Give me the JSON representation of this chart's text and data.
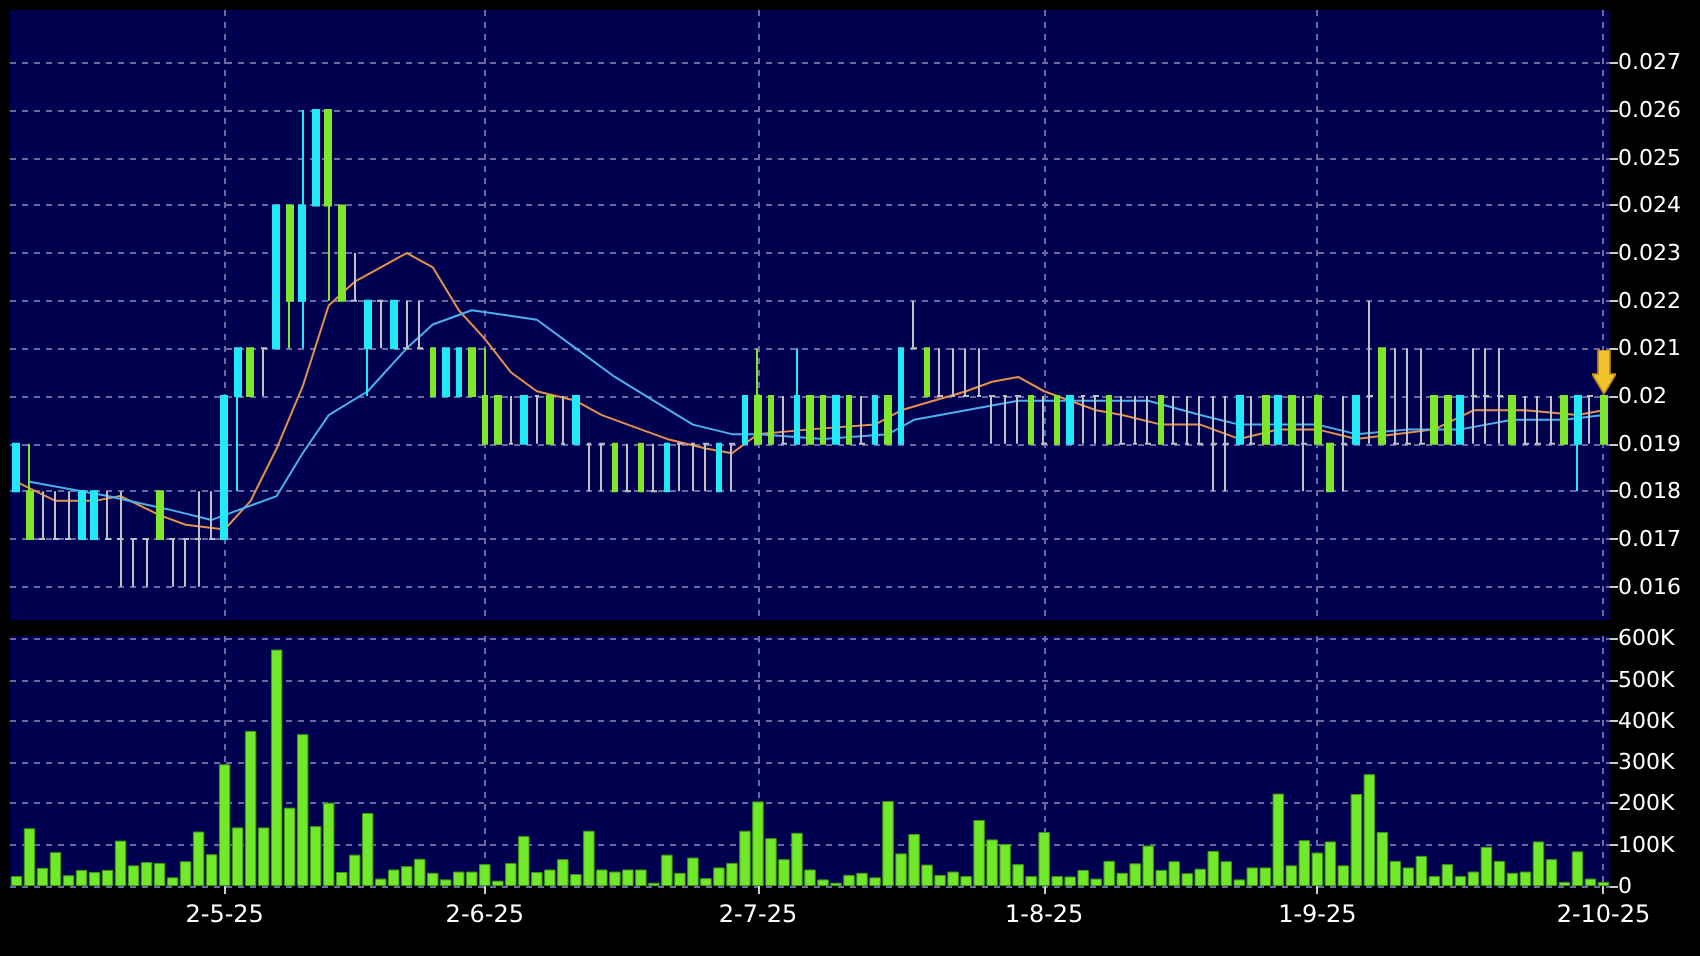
{
  "chart_data": [
    {
      "type": "candlestick",
      "categories": [
        null,
        null,
        null,
        null,
        null,
        null,
        null,
        null,
        null,
        null,
        null,
        null,
        null,
        null,
        null,
        null,
        null,
        null,
        null,
        null,
        null,
        null,
        null,
        null,
        null,
        null,
        null,
        null,
        null,
        null,
        null,
        null,
        null,
        null,
        null,
        null,
        null,
        null,
        null,
        null,
        null,
        null,
        null,
        null,
        null,
        null,
        null,
        null,
        null,
        null,
        null,
        null,
        null,
        null,
        null,
        null,
        null,
        null,
        null,
        null,
        null,
        null,
        null,
        null,
        null,
        null,
        null,
        null,
        null,
        null,
        null,
        null,
        null,
        null,
        null,
        null,
        null,
        null,
        null,
        null,
        null,
        null,
        null,
        null,
        null,
        null,
        null,
        null,
        null,
        null,
        null,
        null,
        null,
        null,
        null,
        null,
        null,
        null,
        null,
        null,
        null,
        null,
        null,
        null,
        null,
        null,
        null,
        null,
        null,
        null,
        null,
        null,
        null,
        null,
        null,
        null,
        null,
        null,
        null,
        null,
        null,
        null,
        null
      ],
      "ohlc": [
        [
          0.018,
          0.019,
          0.018,
          0.019
        ],
        [
          0.018,
          0.019,
          0.017,
          0.017
        ],
        [
          0.017,
          0.018,
          0.017,
          0.017
        ],
        [
          0.017,
          0.018,
          0.017,
          0.017
        ],
        [
          0.017,
          0.018,
          0.017,
          0.017
        ],
        [
          0.017,
          0.018,
          0.017,
          0.018
        ],
        [
          0.017,
          0.018,
          0.017,
          0.018
        ],
        [
          0.017,
          0.018,
          0.017,
          0.017
        ],
        [
          0.017,
          0.018,
          0.016,
          0.017
        ],
        [
          0.017,
          0.017,
          0.016,
          0.017
        ],
        [
          0.017,
          0.017,
          0.016,
          0.017
        ],
        [
          0.018,
          0.018,
          0.017,
          0.017
        ],
        [
          0.017,
          0.017,
          0.016,
          0.017
        ],
        [
          0.017,
          0.017,
          0.016,
          0.017
        ],
        [
          0.017,
          0.018,
          0.016,
          0.017
        ],
        [
          0.017,
          0.018,
          0.017,
          0.017
        ],
        [
          0.017,
          0.02,
          0.017,
          0.02
        ],
        [
          0.02,
          0.021,
          0.018,
          0.021
        ],
        [
          0.021,
          0.021,
          0.02,
          0.02
        ],
        [
          0.021,
          0.021,
          0.02,
          0.021
        ],
        [
          0.021,
          0.024,
          0.021,
          0.024
        ],
        [
          0.024,
          0.024,
          0.021,
          0.022
        ],
        [
          0.022,
          0.026,
          0.021,
          0.024
        ],
        [
          0.024,
          0.026,
          0.024,
          0.026
        ],
        [
          0.026,
          0.026,
          0.022,
          0.024
        ],
        [
          0.024,
          0.024,
          0.022,
          0.022
        ],
        [
          0.022,
          0.023,
          0.022,
          0.022
        ],
        [
          0.021,
          0.022,
          0.02,
          0.022
        ],
        [
          0.022,
          0.022,
          0.021,
          0.022
        ],
        [
          0.021,
          0.022,
          0.021,
          0.022
        ],
        [
          0.021,
          0.022,
          0.021,
          0.021
        ],
        [
          0.021,
          0.022,
          0.021,
          0.021
        ],
        [
          0.021,
          0.021,
          0.02,
          0.02
        ],
        [
          0.02,
          0.021,
          0.02,
          0.021
        ],
        [
          0.02,
          0.021,
          0.02,
          0.021
        ],
        [
          0.021,
          0.021,
          0.02,
          0.02
        ],
        [
          0.02,
          0.021,
          0.019,
          0.019
        ],
        [
          0.02,
          0.02,
          0.019,
          0.019
        ],
        [
          0.019,
          0.02,
          0.019,
          0.019
        ],
        [
          0.019,
          0.02,
          0.019,
          0.02
        ],
        [
          0.02,
          0.02,
          0.019,
          0.02
        ],
        [
          0.02,
          0.02,
          0.019,
          0.019
        ],
        [
          0.019,
          0.02,
          0.019,
          0.019
        ],
        [
          0.019,
          0.02,
          0.019,
          0.02
        ],
        [
          0.019,
          0.019,
          0.018,
          0.019
        ],
        [
          0.019,
          0.019,
          0.018,
          0.019
        ],
        [
          0.019,
          0.019,
          0.018,
          0.018
        ],
        [
          0.018,
          0.019,
          0.018,
          0.018
        ],
        [
          0.019,
          0.019,
          0.018,
          0.018
        ],
        [
          0.018,
          0.019,
          0.018,
          0.018
        ],
        [
          0.018,
          0.019,
          0.018,
          0.019
        ],
        [
          0.019,
          0.019,
          0.018,
          0.019
        ],
        [
          0.019,
          0.019,
          0.018,
          0.019
        ],
        [
          0.019,
          0.019,
          0.018,
          0.019
        ],
        [
          0.018,
          0.019,
          0.018,
          0.019
        ],
        [
          0.019,
          0.019,
          0.018,
          0.019
        ],
        [
          0.019,
          0.02,
          0.019,
          0.02
        ],
        [
          0.02,
          0.021,
          0.019,
          0.019
        ],
        [
          0.02,
          0.02,
          0.019,
          0.019
        ],
        [
          0.019,
          0.02,
          0.019,
          0.019
        ],
        [
          0.019,
          0.021,
          0.019,
          0.02
        ],
        [
          0.02,
          0.02,
          0.019,
          0.019
        ],
        [
          0.02,
          0.02,
          0.019,
          0.019
        ],
        [
          0.019,
          0.02,
          0.019,
          0.02
        ],
        [
          0.02,
          0.02,
          0.019,
          0.019
        ],
        [
          0.019,
          0.02,
          0.019,
          0.019
        ],
        [
          0.019,
          0.02,
          0.019,
          0.02
        ],
        [
          0.02,
          0.02,
          0.019,
          0.019
        ],
        [
          0.019,
          0.021,
          0.019,
          0.021
        ],
        [
          0.021,
          0.022,
          0.021,
          0.021
        ],
        [
          0.021,
          0.021,
          0.02,
          0.02
        ],
        [
          0.02,
          0.021,
          0.02,
          0.02
        ],
        [
          0.02,
          0.021,
          0.02,
          0.02
        ],
        [
          0.02,
          0.021,
          0.02,
          0.02
        ],
        [
          0.02,
          0.021,
          0.02,
          0.02
        ],
        [
          0.02,
          0.02,
          0.019,
          0.02
        ],
        [
          0.02,
          0.02,
          0.019,
          0.02
        ],
        [
          0.02,
          0.02,
          0.019,
          0.02
        ],
        [
          0.02,
          0.02,
          0.019,
          0.019
        ],
        [
          0.019,
          0.02,
          0.019,
          0.019
        ],
        [
          0.02,
          0.02,
          0.019,
          0.019
        ],
        [
          0.019,
          0.02,
          0.019,
          0.02
        ],
        [
          0.02,
          0.02,
          0.019,
          0.02
        ],
        [
          0.02,
          0.02,
          0.019,
          0.02
        ],
        [
          0.02,
          0.02,
          0.019,
          0.019
        ],
        [
          0.019,
          0.02,
          0.019,
          0.019
        ],
        [
          0.019,
          0.02,
          0.019,
          0.019
        ],
        [
          0.019,
          0.02,
          0.019,
          0.019
        ],
        [
          0.02,
          0.02,
          0.019,
          0.019
        ],
        [
          0.019,
          0.02,
          0.019,
          0.019
        ],
        [
          0.019,
          0.02,
          0.019,
          0.019
        ],
        [
          0.019,
          0.02,
          0.019,
          0.019
        ],
        [
          0.019,
          0.02,
          0.018,
          0.019
        ],
        [
          0.019,
          0.02,
          0.018,
          0.019
        ],
        [
          0.019,
          0.02,
          0.019,
          0.02
        ],
        [
          0.019,
          0.02,
          0.019,
          0.019
        ],
        [
          0.02,
          0.02,
          0.019,
          0.019
        ],
        [
          0.019,
          0.02,
          0.019,
          0.02
        ],
        [
          0.02,
          0.02,
          0.019,
          0.019
        ],
        [
          0.019,
          0.02,
          0.018,
          0.019
        ],
        [
          0.02,
          0.02,
          0.019,
          0.019
        ],
        [
          0.019,
          0.019,
          0.018,
          0.018
        ],
        [
          0.019,
          0.02,
          0.018,
          0.019
        ],
        [
          0.019,
          0.02,
          0.019,
          0.02
        ],
        [
          0.02,
          0.022,
          0.019,
          0.02
        ],
        [
          0.021,
          0.021,
          0.019,
          0.019
        ],
        [
          0.019,
          0.021,
          0.019,
          0.019
        ],
        [
          0.019,
          0.021,
          0.019,
          0.019
        ],
        [
          0.019,
          0.021,
          0.019,
          0.019
        ],
        [
          0.02,
          0.02,
          0.019,
          0.019
        ],
        [
          0.02,
          0.02,
          0.019,
          0.019
        ],
        [
          0.019,
          0.02,
          0.019,
          0.02
        ],
        [
          0.02,
          0.021,
          0.019,
          0.02
        ],
        [
          0.02,
          0.021,
          0.019,
          0.02
        ],
        [
          0.02,
          0.021,
          0.019,
          0.02
        ],
        [
          0.02,
          0.02,
          0.019,
          0.019
        ],
        [
          0.019,
          0.02,
          0.019,
          0.019
        ],
        [
          0.019,
          0.02,
          0.019,
          0.019
        ],
        [
          0.019,
          0.02,
          0.019,
          0.019
        ],
        [
          0.02,
          0.02,
          0.019,
          0.019
        ],
        [
          0.019,
          0.02,
          0.018,
          0.02
        ],
        [
          0.02,
          0.02,
          0.019,
          0.02
        ],
        [
          0.02,
          0.02,
          0.019,
          0.019
        ]
      ],
      "colors": [
        "#22e8f8",
        "#7ee62c",
        "#c0c0c0",
        "#c0c0c0",
        "#c0c0c0",
        "#22e8f8",
        "#22e8f8",
        "#c0c0c0",
        "#c0c0c0",
        "#c0c0c0",
        "#c0c0c0",
        "#7ee62c",
        "#c0c0c0",
        "#c0c0c0",
        "#c0c0c0",
        "#c0c0c0",
        "#22e8f8",
        "#22e8f8",
        "#7ee62c",
        "#c0c0c0",
        "#22e8f8",
        "#7ee62c",
        "#22e8f8",
        "#22e8f8",
        "#7ee62c",
        "#7ee62c",
        "#c0c0c0",
        "#22e8f8",
        "#c0c0c0",
        "#22e8f8",
        "#c0c0c0",
        "#c0c0c0",
        "#7ee62c",
        "#22e8f8",
        "#22e8f8",
        "#7ee62c",
        "#7ee62c",
        "#7ee62c",
        "#c0c0c0",
        "#22e8f8",
        "#c0c0c0",
        "#7ee62c",
        "#c0c0c0",
        "#22e8f8",
        "#c0c0c0",
        "#c0c0c0",
        "#7ee62c",
        "#c0c0c0",
        "#7ee62c",
        "#c0c0c0",
        "#22e8f8",
        "#c0c0c0",
        "#c0c0c0",
        "#c0c0c0",
        "#22e8f8",
        "#c0c0c0",
        "#22e8f8",
        "#7ee62c",
        "#7ee62c",
        "#c0c0c0",
        "#22e8f8",
        "#7ee62c",
        "#7ee62c",
        "#22e8f8",
        "#7ee62c",
        "#c0c0c0",
        "#22e8f8",
        "#7ee62c",
        "#22e8f8",
        "#c0c0c0",
        "#7ee62c",
        "#c0c0c0",
        "#c0c0c0",
        "#c0c0c0",
        "#c0c0c0",
        "#c0c0c0",
        "#c0c0c0",
        "#c0c0c0",
        "#7ee62c",
        "#c0c0c0",
        "#7ee62c",
        "#22e8f8",
        "#c0c0c0",
        "#c0c0c0",
        "#7ee62c",
        "#c0c0c0",
        "#c0c0c0",
        "#c0c0c0",
        "#7ee62c",
        "#c0c0c0",
        "#c0c0c0",
        "#c0c0c0",
        "#c0c0c0",
        "#c0c0c0",
        "#22e8f8",
        "#c0c0c0",
        "#7ee62c",
        "#22e8f8",
        "#7ee62c",
        "#c0c0c0",
        "#7ee62c",
        "#7ee62c",
        "#c0c0c0",
        "#22e8f8",
        "#c0c0c0",
        "#7ee62c",
        "#c0c0c0",
        "#c0c0c0",
        "#c0c0c0",
        "#7ee62c",
        "#7ee62c",
        "#22e8f8",
        "#c0c0c0",
        "#c0c0c0",
        "#c0c0c0",
        "#7ee62c",
        "#c0c0c0",
        "#c0c0c0",
        "#c0c0c0",
        "#7ee62c",
        "#22e8f8",
        "#c0c0c0",
        "#7ee62c"
      ],
      "series": [
        {
          "type": "line",
          "color": "#e8904a",
          "values": [
            0.0182,
            null,
            null,
            0.0178,
            null,
            null,
            0.0178,
            null,
            0.0179,
            null,
            null,
            0.0175,
            null,
            0.0173,
            null,
            null,
            0.0172,
            null,
            0.0178,
            null,
            0.0189,
            null,
            0.0202,
            null,
            0.0219,
            null,
            0.0224,
            null,
            0.0227,
            null,
            0.023,
            null,
            0.0227,
            null,
            0.0218,
            null,
            0.0212,
            null,
            0.0205,
            null,
            0.0201,
            null,
            null,
            0.0199,
            null,
            0.0196,
            null,
            0.0194,
            null,
            null,
            0.0191,
            null,
            null,
            0.0189,
            null,
            0.0188,
            null,
            0.0192,
            null,
            null,
            null,
            0.0193,
            null,
            null,
            null,
            null,
            0.0194,
            null,
            0.0197,
            null,
            null,
            null,
            null,
            0.0201,
            null,
            0.0203,
            null,
            0.0204,
            null,
            0.0201,
            null,
            0.0199,
            null,
            0.0197,
            null,
            0.0196,
            null,
            null,
            0.0194,
            null,
            null,
            0.0194,
            null,
            null,
            0.0191,
            null,
            null,
            0.0193,
            null,
            null,
            0.0193,
            null,
            null,
            0.0191,
            null,
            null,
            0.0192,
            null,
            null,
            0.0193,
            null,
            null,
            0.0197,
            null,
            null,
            null,
            0.0197,
            null,
            null,
            null,
            0.0196,
            null,
            0.0197
          ]
        },
        {
          "type": "line",
          "color": "#4ab0f0",
          "values": [
            null,
            0.0182,
            null,
            0.0181,
            null,
            null,
            null,
            0.0179,
            null,
            null,
            null,
            null,
            0.0176,
            null,
            null,
            0.0174,
            null,
            null,
            null,
            null,
            0.0179,
            null,
            0.0188,
            null,
            0.0196,
            null,
            null,
            0.0201,
            null,
            null,
            0.021,
            null,
            0.0215,
            null,
            null,
            0.0218,
            null,
            null,
            null,
            null,
            0.0216,
            null,
            null,
            0.021,
            null,
            null,
            0.0204,
            null,
            null,
            0.0199,
            null,
            null,
            0.0194,
            null,
            null,
            0.0192,
            null,
            0.0192,
            null,
            null,
            null,
            null,
            0.0191,
            null,
            null,
            null,
            null,
            0.0192,
            null,
            0.0195,
            null,
            null,
            null,
            0.0197,
            null,
            null,
            null,
            0.0199,
            null,
            null,
            null,
            0.0199,
            null,
            null,
            null,
            null,
            null,
            0.0199,
            null,
            null,
            null,
            0.0196,
            null,
            null,
            0.0194,
            null,
            null,
            null,
            null,
            null,
            0.0194,
            null,
            null,
            0.0192,
            null,
            null,
            null,
            0.0193,
            null,
            null,
            null,
            0.0193,
            null,
            null,
            null,
            0.0195,
            null,
            null,
            null,
            0.0195,
            null,
            null,
            0.0196
          ]
        }
      ],
      "ylim": [
        0.0153,
        0.0281
      ],
      "yticks": [
        0.016,
        0.017,
        0.018,
        0.019,
        0.02,
        0.021,
        0.022,
        0.023,
        0.024,
        0.025,
        0.026,
        0.027
      ],
      "grid": true,
      "tick_labels": "y",
      "marker": "none"
    },
    {
      "type": "bar",
      "categories": [
        null,
        null,
        null,
        null,
        null,
        null,
        null,
        null,
        null,
        null,
        null,
        null,
        null,
        null,
        null,
        null,
        "2-5-25",
        null,
        null,
        null,
        null,
        null,
        null,
        null,
        null,
        null,
        null,
        null,
        null,
        null,
        null,
        null,
        null,
        null,
        null,
        null,
        "2-6-25",
        null,
        null,
        null,
        null,
        null,
        null,
        null,
        null,
        null,
        null,
        null,
        null,
        null,
        null,
        null,
        null,
        null,
        null,
        null,
        null,
        "2-7-25",
        null,
        null,
        null,
        null,
        null,
        null,
        null,
        null,
        null,
        null,
        null,
        null,
        null,
        null,
        null,
        null,
        null,
        null,
        null,
        null,
        null,
        "1-8-25",
        null,
        null,
        null,
        null,
        null,
        null,
        null,
        null,
        null,
        null,
        null,
        null,
        null,
        null,
        null,
        null,
        null,
        null,
        null,
        null,
        "1-9-25",
        null,
        null,
        null,
        null,
        null,
        null,
        null,
        null,
        null,
        null,
        null,
        null,
        null,
        null,
        null,
        null,
        null,
        null,
        null,
        null,
        null,
        "2-10-25"
      ],
      "values": [
        24000,
        140000,
        44000,
        82000,
        26000,
        39000,
        34000,
        39000,
        110000,
        50000,
        58000,
        56000,
        21000,
        60000,
        132000,
        77000,
        295000,
        142000,
        376000,
        142000,
        573000,
        190000,
        368000,
        145000,
        202000,
        34000,
        76000,
        177000,
        18000,
        40000,
        48000,
        66000,
        32000,
        16000,
        35000,
        35000,
        53000,
        13000,
        56000,
        121000,
        34000,
        40000,
        65000,
        29000,
        134000,
        40000,
        35000,
        40000,
        40000,
        8000,
        76000,
        32000,
        69000,
        19000,
        45000,
        56000,
        134000,
        205000,
        116000,
        65000,
        129000,
        40000,
        16000,
        8000,
        27000,
        32000,
        21000,
        206000,
        79000,
        126000,
        52000,
        27000,
        35000,
        24000,
        160000,
        113000,
        102000,
        53000,
        24000,
        131000,
        24000,
        23000,
        39000,
        18000,
        61000,
        32000,
        55000,
        98000,
        39000,
        60000,
        31000,
        42000,
        85000,
        60000,
        16000,
        45000,
        45000,
        224000,
        50000,
        111000,
        81000,
        108000,
        50000,
        223000,
        271000,
        131000,
        61000,
        45000,
        73000,
        24000,
        53000,
        24000,
        35000,
        95000,
        61000,
        32000,
        35000,
        108000,
        65000,
        10000,
        84000,
        18000,
        10000
      ],
      "color": "#72e82a",
      "ylim": [
        0,
        606000
      ],
      "yticks": [
        0,
        {
          "value": 100000,
          "label": "100K"
        },
        {
          "value": 200000,
          "label": "200K"
        },
        {
          "value": 300000,
          "label": "300K"
        },
        {
          "value": 400000,
          "label": "400K"
        },
        {
          "value": 500000,
          "label": "500K"
        },
        {
          "value": 600000,
          "label": "600K"
        }
      ],
      "grid": true
    }
  ]
}
